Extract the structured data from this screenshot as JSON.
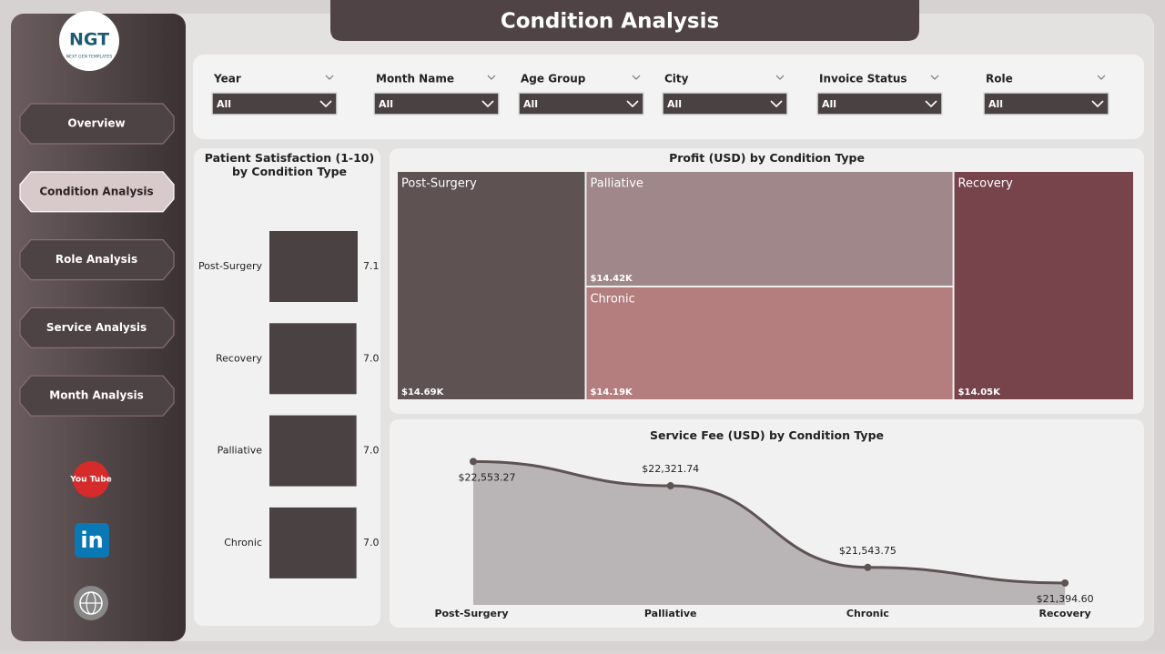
{
  "header": {
    "title": "Condition Analysis"
  },
  "logo": {
    "name": "NGT",
    "tagline": "NEXT GEN TEMPLATES"
  },
  "nav": [
    "Overview",
    "Condition Analysis",
    "Role Analysis",
    "Service Analysis",
    "Month Analysis"
  ],
  "icons": {
    "youtube": "You Tube",
    "linkedin": "in"
  },
  "filters": [
    {
      "label": "Year",
      "value": "All"
    },
    {
      "label": "Month Name",
      "value": "All"
    },
    {
      "label": "Age Group",
      "value": "All"
    },
    {
      "label": "City",
      "value": "All"
    },
    {
      "label": "Invoice Status",
      "value": "All"
    },
    {
      "label": "Role",
      "value": "All"
    }
  ],
  "chart_data": [
    {
      "type": "hbar",
      "title": "Patient Satisfaction (1-10) by Condition Type",
      "categories": [
        "Post-Surgery",
        "Recovery",
        "Palliative",
        "Chronic"
      ],
      "values": [
        7.1,
        7.0,
        7.0,
        7.0
      ],
      "value_labels": [
        "7.1",
        "7.0",
        "7.0",
        "7.0"
      ],
      "color": "#4a4143"
    },
    {
      "type": "treemap",
      "title": "Profit (USD) by Condition Type",
      "categories": [
        "Post-Surgery",
        "Palliative",
        "Chronic",
        "Recovery"
      ],
      "values": [
        14690,
        14420,
        14190,
        14050
      ],
      "value_labels": [
        "$14.69K",
        "$14.42K",
        "$14.19K",
        "$14.05K"
      ],
      "colors": [
        "#5e5253",
        "#a0878a",
        "#b47d7e",
        "#77444c"
      ]
    },
    {
      "type": "area",
      "title": "Service Fee (USD) by Condition Type",
      "categories": [
        "Post-Surgery",
        "Palliative",
        "Chronic",
        "Recovery"
      ],
      "values": [
        22553.27,
        22321.74,
        21543.75,
        21394.6
      ],
      "value_labels": [
        "$22,553.27",
        "$22,321.74",
        "$21,543.75",
        "$21,394.60"
      ],
      "color": "#5e5253",
      "fill": "#b9b4b5"
    }
  ]
}
